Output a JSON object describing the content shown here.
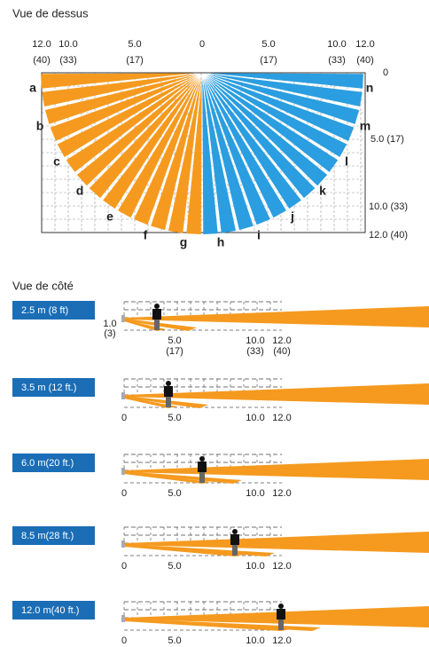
{
  "top_view": {
    "title": "Vue de dessus",
    "distance_labels": [
      "12.0",
      "10.0",
      "5.0",
      "0",
      "5.0",
      "10.0",
      "12.0"
    ],
    "feet_labels": [
      "(40)",
      "(33)",
      "(17)",
      "(17)",
      "(33)",
      "(40)"
    ],
    "depth_labels": [
      "0",
      "5.0 (17)",
      "10.0 (33)",
      "12.0 (40)"
    ],
    "zones": [
      "a",
      "b",
      "c",
      "d",
      "e",
      "f",
      "g",
      "h",
      "i",
      "j",
      "k",
      "l",
      "m",
      "n"
    ]
  },
  "side_view": {
    "title": "Vue de côté",
    "rows": [
      {
        "height": "2.5 m (8 ft)"
      },
      {
        "height": "3.5 m (12 ft.)"
      },
      {
        "height": "6.0 m(20 ft.)"
      },
      {
        "height": "8.5 m(28 ft.)"
      },
      {
        "height": "12.0 m(40 ft.)"
      }
    ],
    "height_label": "1.0",
    "height_feet": "(3)",
    "axis_labels": [
      "0",
      "5.0",
      "10.0",
      "12.0"
    ],
    "feet_labels": [
      "(17)",
      "(33)",
      "(40)"
    ]
  }
}
